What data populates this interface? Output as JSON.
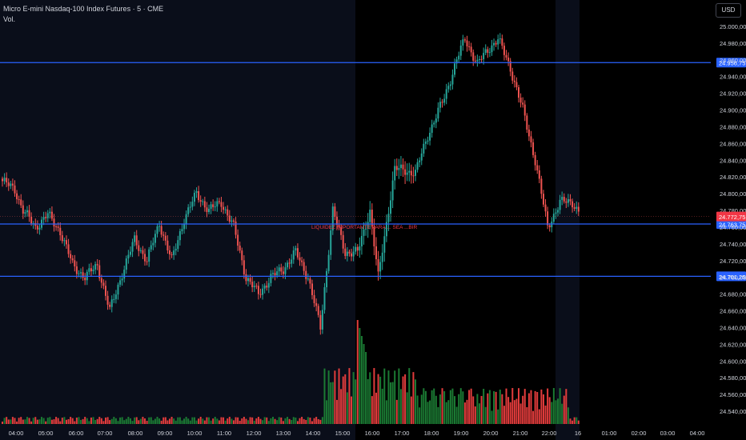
{
  "header": {
    "symbol": "Micro E-mini Nasdaq-100 Index Futures",
    "interval": "5",
    "exchange": "CME",
    "volume_label": "Vol."
  },
  "price_axis": {
    "currency": "USD",
    "ticks": [
      "25.000,00",
      "24.980,00",
      "24.960,00",
      "24.940,00",
      "24.920,00",
      "24.900,00",
      "24.880,00",
      "24.860,00",
      "24.840,00",
      "24.820,00",
      "24.800,00",
      "24.780,00",
      "24.760,00",
      "24.740,00",
      "24.720,00",
      "24.700,00",
      "24.680,00",
      "24.660,00",
      "24.640,00",
      "24.620,00",
      "24.600,00",
      "24.580,00",
      "24.560,00",
      "24.540,00"
    ],
    "tick_values": [
      25000,
      24980,
      24960,
      24940,
      24920,
      24900,
      24880,
      24860,
      24840,
      24820,
      24800,
      24780,
      24760,
      24740,
      24720,
      24700,
      24680,
      24660,
      24640,
      24620,
      24600,
      24580,
      24560,
      24540
    ],
    "current_price_label": "24.772,75",
    "current_price": 24772.75,
    "current_price_color": "#f23645"
  },
  "horizontal_lines": [
    {
      "price": 24956.75,
      "label": "24.956,75",
      "color": "#2962ff"
    },
    {
      "price": 24763.75,
      "label": "24.763,75",
      "color": "#2962ff"
    },
    {
      "price": 24701.25,
      "label": "24.701,25",
      "color": "#2962ff"
    }
  ],
  "annotation": {
    "text": "LIQUIDEZ IMPORTANTE PARA ... SEA ...BIR",
    "price": 24763.75,
    "color": "#f23645"
  },
  "time_axis": {
    "labels": [
      "04:00",
      "05:00",
      "06:00",
      "07:00",
      "08:00",
      "09:00",
      "10:00",
      "11:00",
      "12:00",
      "13:00",
      "14:00",
      "15:00",
      "16:00",
      "17:00",
      "18:00",
      "19:00",
      "20:00",
      "21:00",
      "22:00",
      "16",
      "01:00",
      "02:00",
      "03:00",
      "04:00"
    ]
  },
  "colors": {
    "up": "#26a69a",
    "down": "#ef5350",
    "vol_up": "#1b7a33",
    "vol_down": "#e23c3c",
    "session_bg": "#0a0e1a",
    "grid": "#161a25",
    "axis_text": "#d1d4dc"
  },
  "chart_data": {
    "type": "candlestick",
    "title": "Micro E-mini Nasdaq-100 Index Futures · 5 · CME",
    "ylim": [
      24530,
      25010
    ],
    "x": [
      "04:00",
      "05:00",
      "06:00",
      "07:00",
      "08:00",
      "09:00",
      "10:00",
      "11:00",
      "12:00",
      "13:00",
      "14:00",
      "15:00",
      "16:00",
      "17:00",
      "18:00",
      "19:00",
      "20:00",
      "21:00",
      "22:00"
    ],
    "series": [
      {
        "name": "close",
        "anchors": [
          [
            0,
            24815
          ],
          [
            6,
            24805
          ],
          [
            10,
            24780
          ],
          [
            16,
            24760
          ],
          [
            22,
            24775
          ],
          [
            28,
            24755
          ],
          [
            34,
            24715
          ],
          [
            40,
            24700
          ],
          [
            46,
            24715
          ],
          [
            52,
            24660
          ],
          [
            58,
            24705
          ],
          [
            64,
            24745
          ],
          [
            70,
            24720
          ],
          [
            76,
            24765
          ],
          [
            82,
            24720
          ],
          [
            88,
            24770
          ],
          [
            94,
            24800
          ],
          [
            100,
            24780
          ],
          [
            106,
            24790
          ],
          [
            112,
            24760
          ],
          [
            118,
            24700
          ],
          [
            124,
            24680
          ],
          [
            130,
            24700
          ],
          [
            136,
            24710
          ],
          [
            142,
            24730
          ],
          [
            148,
            24700
          ],
          [
            154,
            24640
          ],
          [
            160,
            24780
          ],
          [
            166,
            24730
          ],
          [
            172,
            24730
          ],
          [
            178,
            24780
          ],
          [
            182,
            24700
          ],
          [
            190,
            24830
          ],
          [
            200,
            24825
          ],
          [
            206,
            24870
          ],
          [
            214,
            24915
          ],
          [
            220,
            24960
          ],
          [
            224,
            24985
          ],
          [
            230,
            24955
          ],
          [
            236,
            24975
          ],
          [
            240,
            24985
          ],
          [
            246,
            24950
          ],
          [
            252,
            24900
          ],
          [
            258,
            24840
          ],
          [
            264,
            24760
          ],
          [
            270,
            24790
          ],
          [
            276,
            24790
          ],
          [
            280,
            24775
          ]
        ]
      }
    ],
    "total_bars": 281,
    "vertical_session_break": "15:30",
    "grid": false
  }
}
